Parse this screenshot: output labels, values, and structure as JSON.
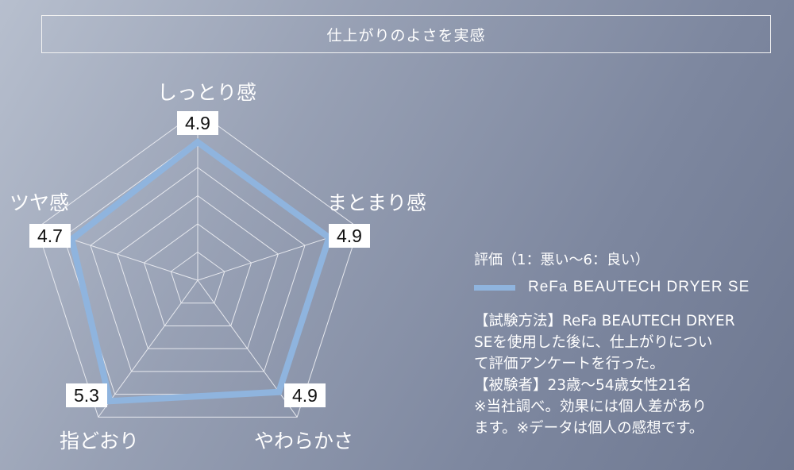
{
  "title": "仕上がりのよさを実感",
  "chart_data": {
    "type": "radar",
    "categories": [
      "しっとり感",
      "まとまり感",
      "やわらかさ",
      "指どおり",
      "ツヤ感"
    ],
    "series": [
      {
        "name": "ReFa BEAUTECH DRYER SE",
        "values": [
          4.9,
          4.9,
          4.9,
          5.3,
          4.7
        ],
        "color": "#8fb4de"
      }
    ],
    "value_labels": [
      "4.9",
      "4.9",
      "4.9",
      "5.3",
      "4.7"
    ],
    "range": [
      0,
      6
    ],
    "grid": true
  },
  "scale_note": "評価（1：悪い～6：良い）",
  "legend_label": "ReFa BEAUTECH DRYER SE",
  "notes": [
    "【試験方法】ReFa BEAUTECH DRYER",
    "SEを使用した後に、仕上がりについ",
    "て評価アンケートを行った。",
    "【被験者】23歳～54歳女性21名",
    "※当社調べ。効果には個人差があり",
    "ます。※データは個人の感想です。"
  ]
}
